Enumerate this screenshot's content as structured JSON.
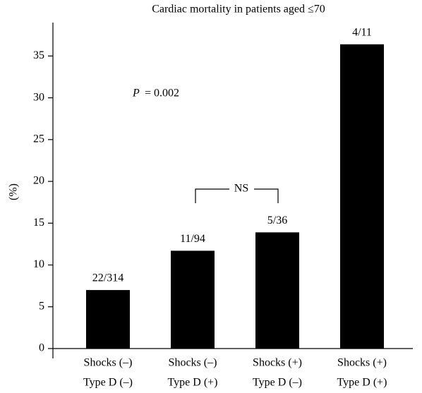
{
  "chart_data": {
    "type": "bar",
    "title": "Cardiac mortality in patients aged ≤70",
    "y_label": "(%)",
    "categories": [
      [
        "Shocks (–)",
        "Type D (–)"
      ],
      [
        "Shocks (–)",
        "Type D (+)"
      ],
      [
        "Shocks (+)",
        "Type D (–)"
      ],
      [
        "Shocks (+)",
        "Type D (+)"
      ]
    ],
    "values": [
      7.0,
      11.7,
      13.9,
      36.4
    ],
    "value_labels": [
      "22/314",
      "11/94",
      "5/36",
      "4/11"
    ],
    "color": "#000000",
    "ylim": [
      0,
      39
    ],
    "yticks": [
      0,
      5,
      10,
      15,
      20,
      25,
      30,
      35
    ],
    "grid": false,
    "p_annotation": {
      "symbol": "P",
      "text": "= 0.002"
    },
    "bracket_label": "NS"
  }
}
